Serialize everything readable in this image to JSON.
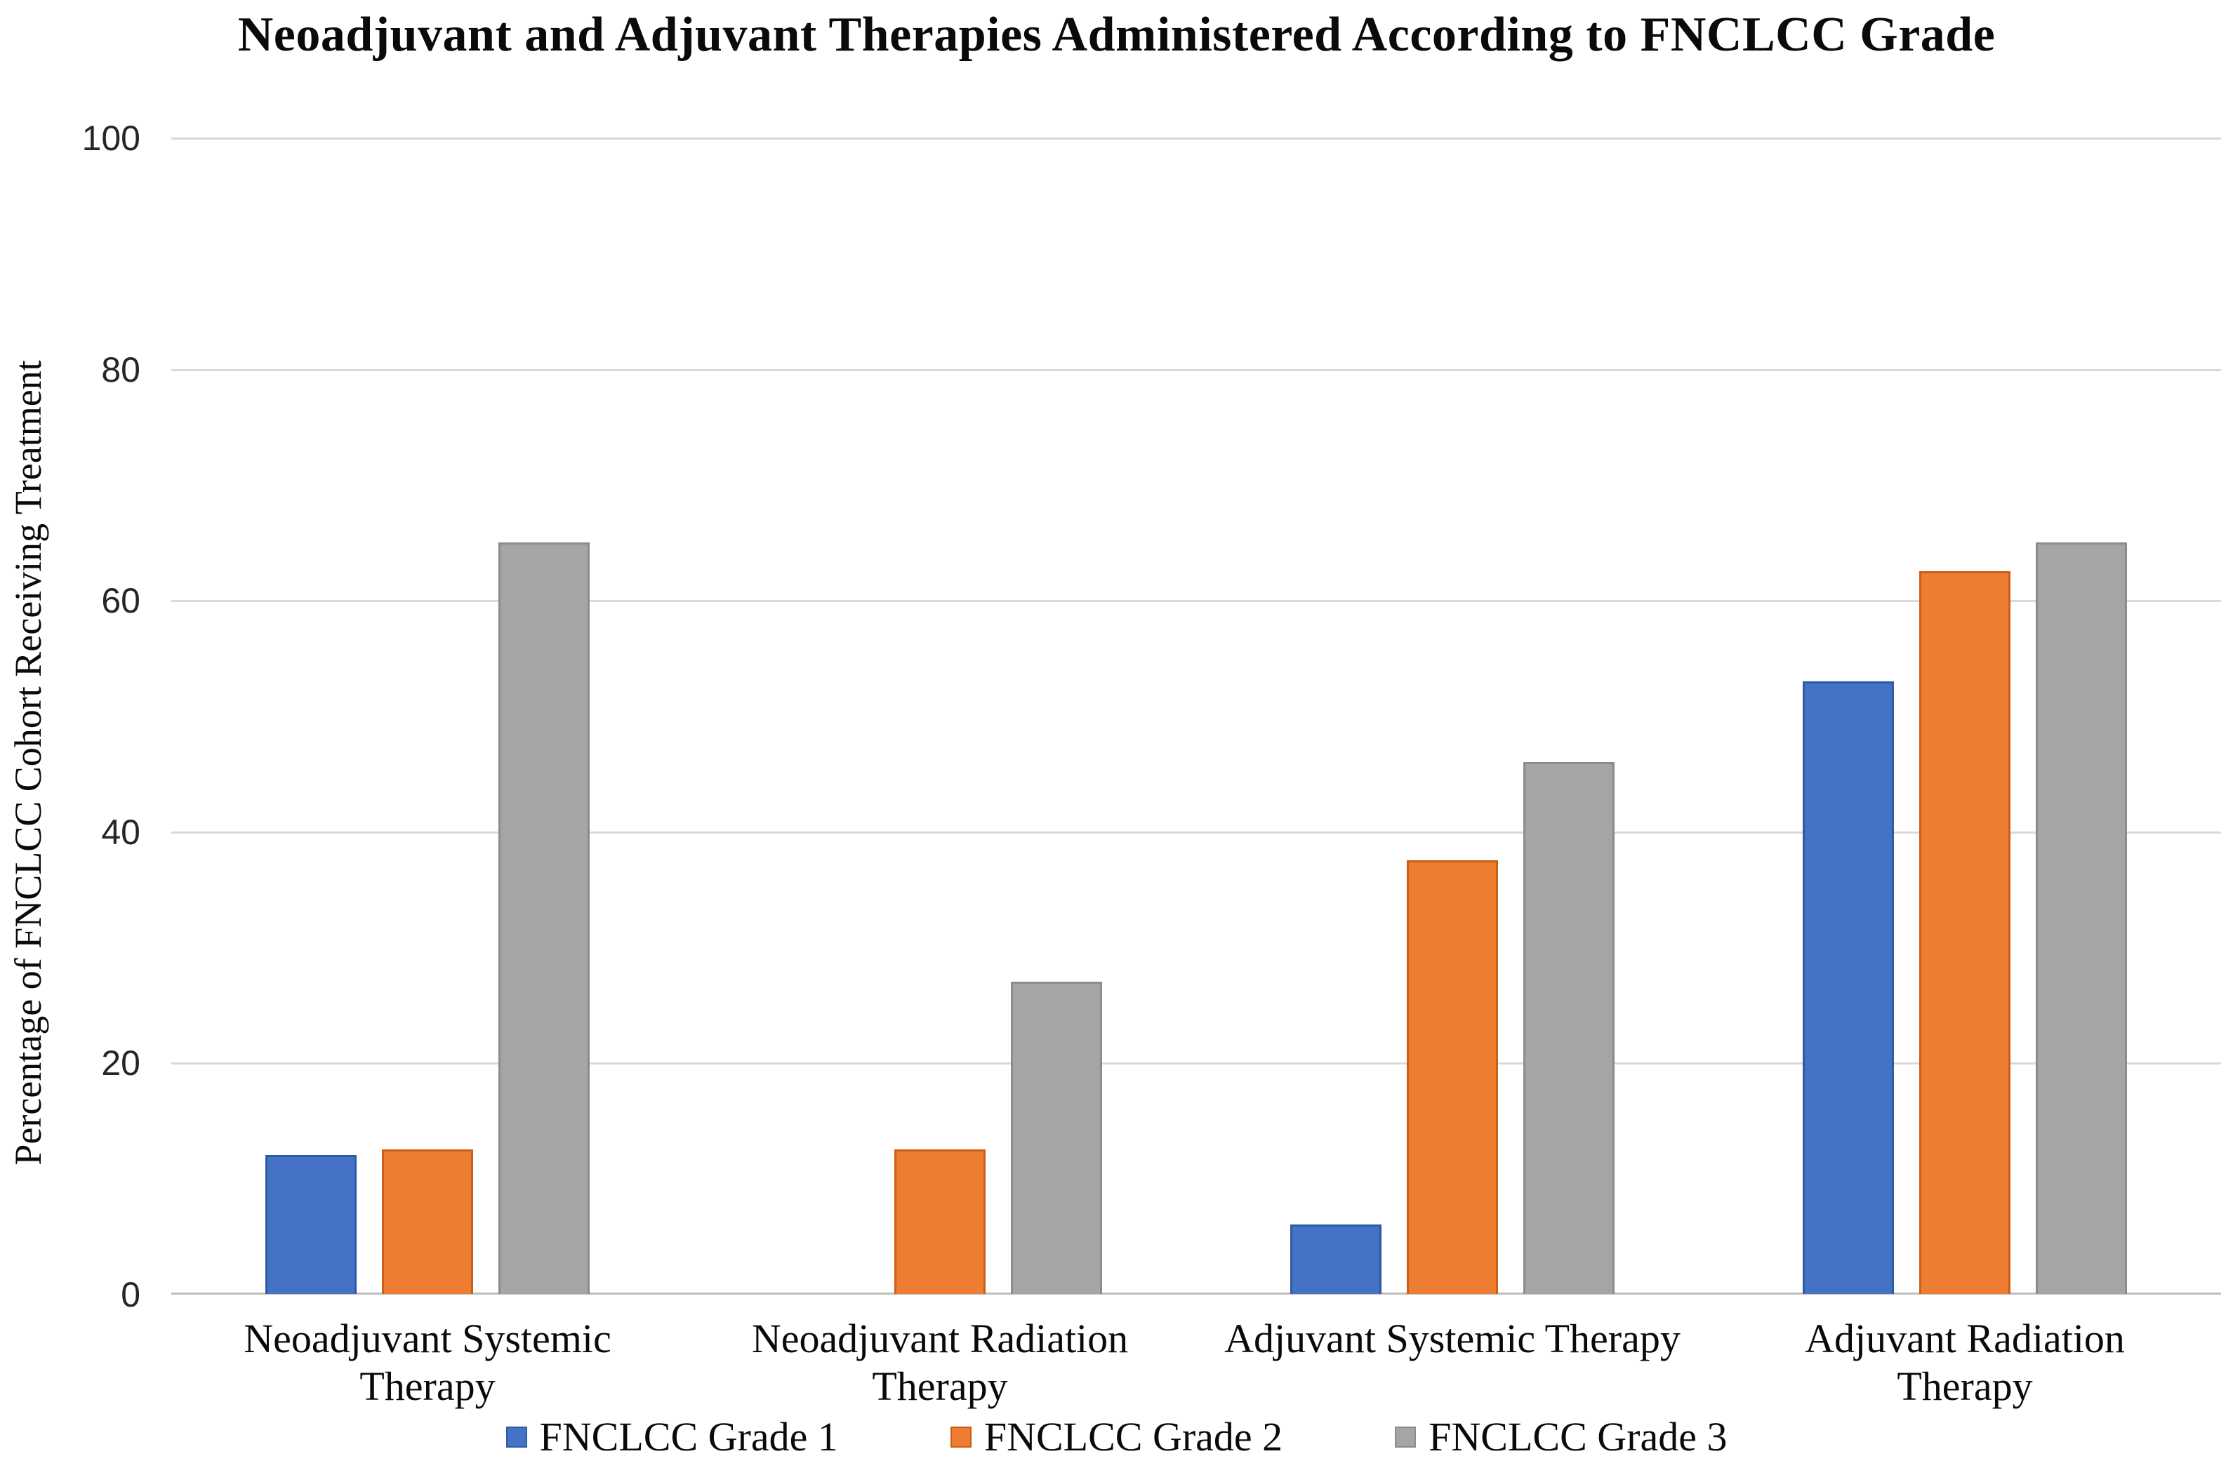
{
  "title": "Neoadjuvant and Adjuvant Therapies Administered According to FNCLCC Grade",
  "y_axis_title": "Percentage of FNCLCC Cohort Receiving  Treatment",
  "legend": {
    "items": [
      "FNCLCC Grade 1",
      "FNCLCC Grade 2",
      "FNCLCC Grade 3"
    ]
  },
  "colors": {
    "grade1_blue": "#4472C4",
    "grade2_orange": "#ED7D31",
    "grade3_gray": "#A5A5A5",
    "gridline": "#D9D9D9",
    "baseline": "#BFBFBF"
  },
  "chart_data": {
    "type": "bar",
    "title": "Neoadjuvant and Adjuvant Therapies Administered According to FNCLCC Grade",
    "xlabel": "",
    "ylabel": "Percentage of FNCLCC Cohort Receiving  Treatment",
    "ylim": [
      0,
      100
    ],
    "yticks": [
      0,
      20,
      40,
      60,
      80,
      100
    ],
    "grid": true,
    "legend_position": "bottom",
    "categories": [
      "Neoadjuvant Systemic Therapy",
      "Neoadjuvant Radiation Therapy",
      "Adjuvant Systemic Therapy",
      "Adjuvant Radiation Therapy"
    ],
    "category_lines": [
      [
        "Neoadjuvant Systemic",
        "Therapy"
      ],
      [
        "Neoadjuvant Radiation",
        "Therapy"
      ],
      [
        "Adjuvant Systemic Therapy"
      ],
      [
        "Adjuvant Radiation",
        "Therapy"
      ]
    ],
    "series": [
      {
        "name": "FNCLCC Grade 1",
        "color": "#4472C4",
        "border_color": "#2E5AA8",
        "values": [
          12,
          0,
          6,
          53
        ]
      },
      {
        "name": "FNCLCC Grade 2",
        "color": "#ED7D31",
        "border_color": "#CC5F14",
        "values": [
          12.5,
          12.5,
          37.5,
          62.5
        ]
      },
      {
        "name": "FNCLCC Grade 3",
        "color": "#A5A5A5",
        "border_color": "#8C8C8C",
        "values": [
          65,
          27,
          46,
          65
        ]
      }
    ]
  }
}
